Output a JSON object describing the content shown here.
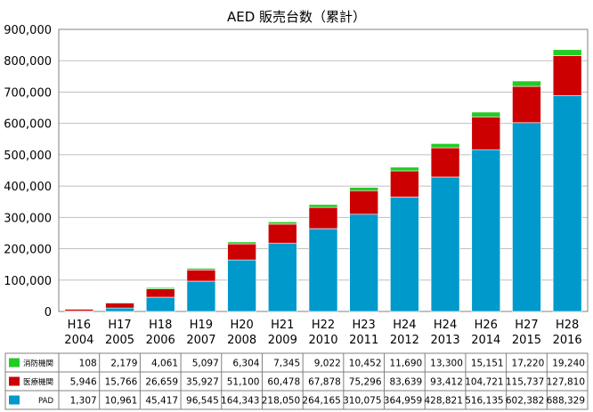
{
  "chart_data": {
    "type": "bar",
    "stacked": true,
    "title": "AED 販売台数（累計）",
    "grid": true,
    "ylim": [
      0,
      900000
    ],
    "y_ticks": [
      "0",
      "100,000",
      "200,000",
      "300,000",
      "400,000",
      "500,000",
      "600,000",
      "700,000",
      "800,000",
      "900,000"
    ],
    "y_tick_values": [
      0,
      100000,
      200000,
      300000,
      400000,
      500000,
      600000,
      700000,
      800000,
      900000
    ],
    "categories": [
      {
        "era": "H16",
        "year": "2004"
      },
      {
        "era": "H17",
        "year": "2005"
      },
      {
        "era": "H18",
        "year": "2006"
      },
      {
        "era": "H19",
        "year": "2007"
      },
      {
        "era": "H20",
        "year": "2008"
      },
      {
        "era": "H21",
        "year": "2009"
      },
      {
        "era": "H22",
        "year": "2010"
      },
      {
        "era": "H23",
        "year": "2011"
      },
      {
        "era": "H24",
        "year": "2012"
      },
      {
        "era": "H24",
        "year": "2013"
      },
      {
        "era": "H26",
        "year": "2014"
      },
      {
        "era": "H27",
        "year": "2015"
      },
      {
        "era": "H28",
        "year": "2016"
      }
    ],
    "series": [
      {
        "name": "PAD",
        "color": "#0099cc",
        "values": [
          1307,
          10961,
          45417,
          96545,
          164343,
          218050,
          264165,
          310075,
          364959,
          428821,
          516135,
          602382,
          688329
        ],
        "labels": [
          "1,307",
          "10,961",
          "45,417",
          "96,545",
          "164,343",
          "218,050",
          "264,165",
          "310,075",
          "364,959",
          "428,821",
          "516,135",
          "602,382",
          "688,329"
        ]
      },
      {
        "name": "医療機関",
        "color": "#cc0000",
        "values": [
          5946,
          15766,
          26659,
          35927,
          51100,
          60478,
          67878,
          75296,
          83639,
          93412,
          104721,
          115737,
          127810
        ],
        "labels": [
          "5,946",
          "15,766",
          "26,659",
          "35,927",
          "51,100",
          "60,478",
          "67,878",
          "75,296",
          "83,639",
          "93,412",
          "104,721",
          "115,737",
          "127,810"
        ]
      },
      {
        "name": "消防機関",
        "color": "#22cc22",
        "values": [
          108,
          2179,
          4061,
          5097,
          6304,
          7345,
          9022,
          10452,
          11690,
          13300,
          15151,
          17220,
          19240
        ],
        "labels": [
          "108",
          "2,179",
          "4,061",
          "5,097",
          "6,304",
          "7,345",
          "9,022",
          "10,452",
          "11,690",
          "13,300",
          "15,151",
          "17,220",
          "19,240"
        ]
      }
    ],
    "table_row_order": [
      2,
      1,
      0
    ]
  }
}
